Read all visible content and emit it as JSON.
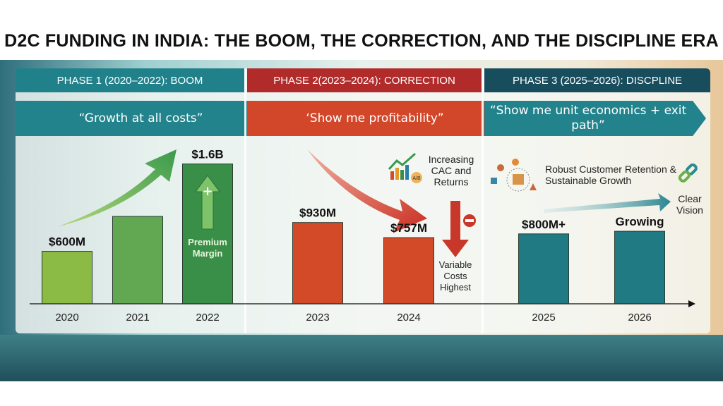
{
  "title": "D2C FUNDING IN INDIA: THE BOOM, THE CORRECTION, AND THE DISCIPLINE ERA",
  "phases": [
    {
      "label": "PHASE 1 (2020–2022): BOOM",
      "slogan": "“Growth at all costs”",
      "color": "#21818a",
      "banner_color": "#23838c"
    },
    {
      "label": "PHASE 2(2023–2024): CORRECTION",
      "slogan": "‘Show me profitability”",
      "color": "#b22b2b",
      "banner_color": "#d2472a"
    },
    {
      "label": "PHASE 3 (2025–2026): DISCPLINE",
      "slogan": "“Show me unit economics + exit path”",
      "color": "#184d5e",
      "banner_color": "#23838c"
    }
  ],
  "annotations": {
    "premium_margin": "Premium Margin",
    "increasing_cac": "Increasing CAC and Returns",
    "ab_badge": "A/B",
    "variable_costs": "Variable Costs Highest",
    "retention": "Robust Customer Retention & Sustainable Growth",
    "clear_vision": "Clear Vision"
  },
  "chart_data": {
    "type": "bar",
    "title": "D2C FUNDING IN INDIA: THE BOOM, THE CORRECTION, AND THE DISCIPLINE ERA",
    "xlabel": "",
    "ylabel": "",
    "categories": [
      "2020",
      "2021",
      "2022",
      "2023",
      "2024",
      "2025",
      "2026"
    ],
    "values": [
      600,
      1000,
      1600,
      930,
      757,
      800,
      830
    ],
    "data_labels": [
      "$600M",
      "",
      "$1.6B",
      "$930M",
      "$757M",
      "$800M+",
      "Growing"
    ],
    "unit": "USD million",
    "bar_colors": [
      "#8bbb45",
      "#62a853",
      "#3a8f48",
      "#d24a28",
      "#d24a28",
      "#1f7a83",
      "#1f7a83"
    ],
    "grid": false,
    "legend": "none"
  }
}
